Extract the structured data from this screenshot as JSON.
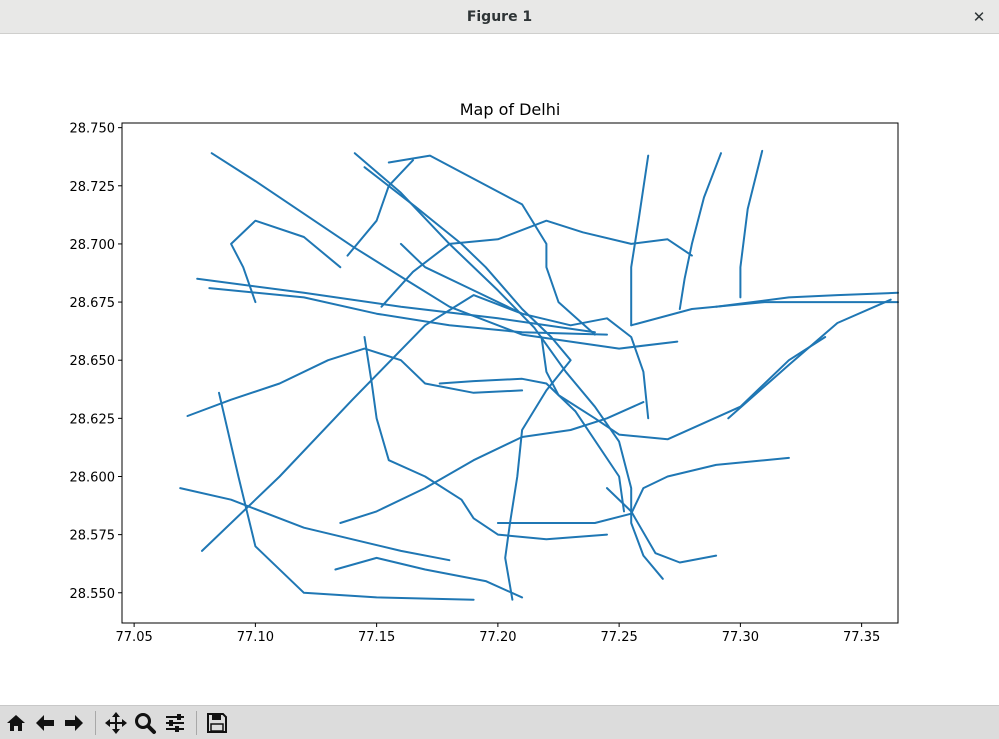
{
  "window": {
    "title": "Figure 1",
    "close_glyph": "✕"
  },
  "toolbar": {
    "buttons": [
      {
        "name": "home-button",
        "icon": "home-icon"
      },
      {
        "name": "back-button",
        "icon": "arrow-left-icon"
      },
      {
        "name": "forward-button",
        "icon": "arrow-right-icon"
      },
      {
        "name": "pan-button",
        "icon": "move-icon"
      },
      {
        "name": "zoom-button",
        "icon": "magnifier-icon"
      },
      {
        "name": "configure-subplots-button",
        "icon": "sliders-icon"
      },
      {
        "name": "save-button",
        "icon": "floppy-disk-icon"
      }
    ]
  },
  "chart_data": {
    "type": "line",
    "title": "Map of Delhi",
    "xlabel": "",
    "ylabel": "",
    "xlim": [
      77.045,
      77.365
    ],
    "ylim": [
      28.537,
      28.752
    ],
    "xticks": [
      "77.05",
      "77.10",
      "77.15",
      "77.20",
      "77.25",
      "77.30",
      "77.35"
    ],
    "xtick_values": [
      77.05,
      77.1,
      77.15,
      77.2,
      77.25,
      77.3,
      77.35
    ],
    "yticks": [
      "28.550",
      "28.575",
      "28.600",
      "28.625",
      "28.650",
      "28.675",
      "28.700",
      "28.725",
      "28.750"
    ],
    "ytick_values": [
      28.55,
      28.575,
      28.6,
      28.625,
      28.65,
      28.675,
      28.7,
      28.725,
      28.75
    ],
    "grid": false,
    "line_color": "#1f77b4",
    "series": [
      {
        "values": [
          [
            77.082,
            28.739
          ],
          [
            77.1,
            28.727
          ],
          [
            77.12,
            28.713
          ],
          [
            77.14,
            28.699
          ],
          [
            77.163,
            28.684
          ],
          [
            77.18,
            28.673
          ],
          [
            77.21,
            28.661
          ],
          [
            77.25,
            28.655
          ],
          [
            77.274,
            28.658
          ]
        ]
      },
      {
        "values": [
          [
            77.076,
            28.685
          ],
          [
            77.12,
            28.679
          ],
          [
            77.16,
            28.673
          ],
          [
            77.2,
            28.668
          ],
          [
            77.24,
            28.662
          ]
        ]
      },
      {
        "values": [
          [
            77.081,
            28.681
          ],
          [
            77.12,
            28.677
          ],
          [
            77.15,
            28.67
          ],
          [
            77.18,
            28.665
          ],
          [
            77.21,
            28.662
          ],
          [
            77.245,
            28.661
          ]
        ]
      },
      {
        "values": [
          [
            77.255,
            28.665
          ],
          [
            77.28,
            28.672
          ],
          [
            77.31,
            28.675
          ],
          [
            77.34,
            28.675
          ],
          [
            77.365,
            28.675
          ]
        ]
      },
      {
        "values": [
          [
            77.29,
            28.673
          ],
          [
            77.32,
            28.677
          ],
          [
            77.34,
            28.678
          ],
          [
            77.365,
            28.679
          ]
        ]
      },
      {
        "values": [
          [
            77.078,
            28.568
          ],
          [
            77.11,
            28.6
          ],
          [
            77.14,
            28.633
          ],
          [
            77.17,
            28.665
          ],
          [
            77.19,
            28.678
          ],
          [
            77.21,
            28.67
          ]
        ]
      },
      {
        "values": [
          [
            77.295,
            28.625
          ],
          [
            77.32,
            28.648
          ],
          [
            77.34,
            28.666
          ],
          [
            77.362,
            28.676
          ]
        ]
      },
      {
        "values": [
          [
            77.141,
            28.739
          ],
          [
            77.16,
            28.722
          ],
          [
            77.18,
            28.7
          ],
          [
            77.2,
            28.68
          ],
          [
            77.215,
            28.664
          ],
          [
            77.228,
            28.645
          ],
          [
            77.24,
            28.63
          ],
          [
            77.25,
            28.615
          ],
          [
            77.255,
            28.595
          ],
          [
            77.255,
            28.58
          ],
          [
            77.26,
            28.566
          ],
          [
            77.268,
            28.556
          ]
        ]
      },
      {
        "values": [
          [
            77.145,
            28.733
          ],
          [
            77.166,
            28.716
          ],
          [
            77.185,
            28.7
          ],
          [
            77.195,
            28.69
          ],
          [
            77.21,
            28.672
          ],
          [
            77.222,
            28.66
          ],
          [
            77.23,
            28.65
          ],
          [
            77.22,
            28.637
          ],
          [
            77.21,
            28.62
          ],
          [
            77.208,
            28.6
          ],
          [
            77.205,
            28.58
          ],
          [
            77.203,
            28.565
          ],
          [
            77.206,
            28.547
          ]
        ]
      },
      {
        "values": [
          [
            77.218,
            28.66
          ],
          [
            77.22,
            28.645
          ],
          [
            77.225,
            28.635
          ],
          [
            77.24,
            28.625
          ],
          [
            77.25,
            28.618
          ],
          [
            77.27,
            28.616
          ],
          [
            77.3,
            28.63
          ],
          [
            77.32,
            28.65
          ],
          [
            77.335,
            28.66
          ]
        ]
      },
      {
        "values": [
          [
            77.2,
            28.58
          ],
          [
            77.24,
            28.58
          ],
          [
            77.255,
            28.584
          ],
          [
            77.26,
            28.595
          ],
          [
            77.27,
            28.6
          ],
          [
            77.29,
            28.605
          ],
          [
            77.31,
            28.607
          ],
          [
            77.32,
            28.608
          ]
        ]
      },
      {
        "values": [
          [
            77.069,
            28.595
          ],
          [
            77.09,
            28.59
          ],
          [
            77.12,
            28.578
          ],
          [
            77.14,
            28.573
          ],
          [
            77.16,
            28.568
          ],
          [
            77.18,
            28.564
          ]
        ]
      },
      {
        "values": [
          [
            77.245,
            28.595
          ],
          [
            77.255,
            28.585
          ],
          [
            77.265,
            28.567
          ],
          [
            77.275,
            28.563
          ],
          [
            77.29,
            28.566
          ]
        ]
      },
      {
        "values": [
          [
            77.072,
            28.626
          ],
          [
            77.09,
            28.633
          ],
          [
            77.11,
            28.64
          ],
          [
            77.13,
            28.65
          ],
          [
            77.145,
            28.655
          ],
          [
            77.16,
            28.65
          ],
          [
            77.17,
            28.64
          ],
          [
            77.19,
            28.636
          ],
          [
            77.21,
            28.637
          ]
        ]
      },
      {
        "values": [
          [
            77.292,
            28.739
          ],
          [
            77.285,
            28.72
          ],
          [
            77.28,
            28.7
          ],
          [
            77.277,
            28.685
          ],
          [
            77.275,
            28.672
          ]
        ]
      },
      {
        "values": [
          [
            77.309,
            28.74
          ],
          [
            77.303,
            28.715
          ],
          [
            77.3,
            28.69
          ],
          [
            77.3,
            28.677
          ]
        ]
      },
      {
        "values": [
          [
            77.262,
            28.738
          ],
          [
            77.258,
            28.71
          ],
          [
            77.255,
            28.69
          ],
          [
            77.255,
            28.665
          ]
        ]
      },
      {
        "values": [
          [
            77.155,
            28.735
          ],
          [
            77.172,
            28.738
          ],
          [
            77.19,
            28.728
          ],
          [
            77.21,
            28.717
          ],
          [
            77.22,
            28.7
          ],
          [
            77.22,
            28.69
          ],
          [
            77.225,
            28.675
          ],
          [
            77.24,
            28.661
          ]
        ]
      },
      {
        "values": [
          [
            77.138,
            28.695
          ],
          [
            77.15,
            28.71
          ],
          [
            77.155,
            28.725
          ],
          [
            77.165,
            28.736
          ]
        ]
      },
      {
        "values": [
          [
            77.1,
            28.675
          ],
          [
            77.095,
            28.69
          ],
          [
            77.09,
            28.7
          ],
          [
            77.1,
            28.71
          ],
          [
            77.12,
            28.703
          ],
          [
            77.135,
            28.69
          ]
        ]
      },
      {
        "values": [
          [
            77.16,
            28.7
          ],
          [
            77.17,
            28.69
          ],
          [
            77.19,
            28.68
          ],
          [
            77.21,
            28.67
          ],
          [
            77.23,
            28.665
          ],
          [
            77.245,
            28.668
          ],
          [
            77.255,
            28.66
          ],
          [
            77.26,
            28.645
          ],
          [
            77.262,
            28.625
          ]
        ]
      },
      {
        "values": [
          [
            77.135,
            28.58
          ],
          [
            77.15,
            28.585
          ],
          [
            77.17,
            28.595
          ],
          [
            77.19,
            28.607
          ],
          [
            77.21,
            28.617
          ],
          [
            77.23,
            28.62
          ],
          [
            77.245,
            28.625
          ],
          [
            77.26,
            28.632
          ]
        ]
      },
      {
        "values": [
          [
            77.152,
            28.673
          ],
          [
            77.165,
            28.688
          ],
          [
            77.18,
            28.7
          ],
          [
            77.2,
            28.702
          ],
          [
            77.22,
            28.71
          ],
          [
            77.235,
            28.705
          ],
          [
            77.255,
            28.7
          ],
          [
            77.27,
            28.702
          ],
          [
            77.28,
            28.695
          ]
        ]
      },
      {
        "values": [
          [
            77.145,
            28.66
          ],
          [
            77.148,
            28.64
          ],
          [
            77.15,
            28.625
          ],
          [
            77.155,
            28.607
          ],
          [
            77.17,
            28.6
          ],
          [
            77.185,
            28.59
          ],
          [
            77.19,
            28.582
          ],
          [
            77.2,
            28.575
          ],
          [
            77.22,
            28.573
          ],
          [
            77.245,
            28.575
          ]
        ]
      },
      {
        "values": [
          [
            77.176,
            28.64
          ],
          [
            77.19,
            28.641
          ],
          [
            77.21,
            28.642
          ],
          [
            77.22,
            28.64
          ],
          [
            77.232,
            28.628
          ],
          [
            77.25,
            28.6
          ],
          [
            77.252,
            28.585
          ]
        ]
      },
      {
        "values": [
          [
            77.085,
            28.636
          ],
          [
            77.093,
            28.6
          ],
          [
            77.1,
            28.57
          ],
          [
            77.12,
            28.55
          ],
          [
            77.15,
            28.548
          ],
          [
            77.19,
            28.547
          ]
        ]
      },
      {
        "values": [
          [
            77.133,
            28.56
          ],
          [
            77.15,
            28.565
          ],
          [
            77.17,
            28.56
          ],
          [
            77.195,
            28.555
          ],
          [
            77.21,
            28.548
          ]
        ]
      }
    ]
  }
}
